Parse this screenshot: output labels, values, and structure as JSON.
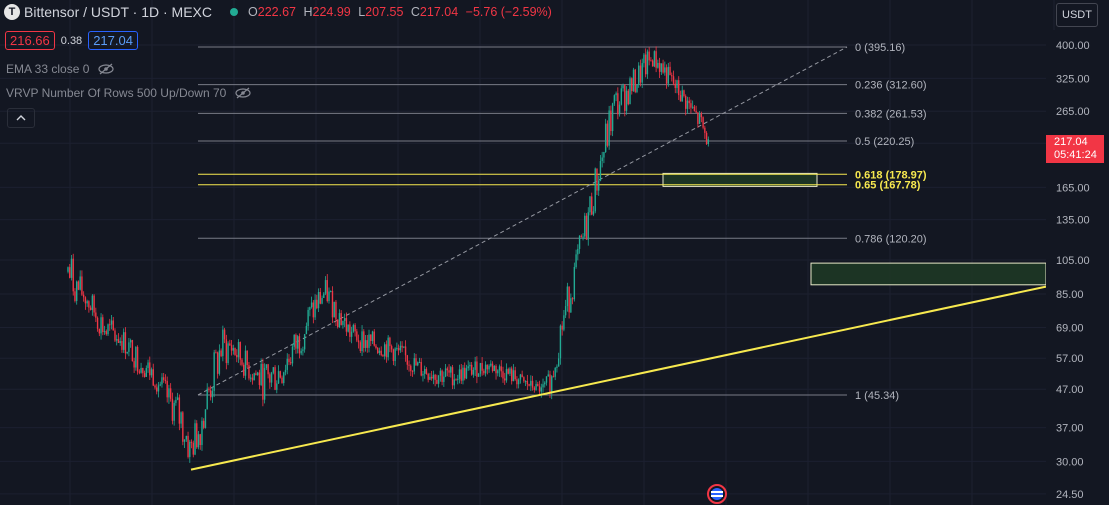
{
  "header": {
    "logo_glyph": "T",
    "symbol": "Bittensor / USDT · 1D · MEXC",
    "open_label": "O",
    "open": "222.67",
    "high_label": "H",
    "high": "224.99",
    "low_label": "L",
    "low": "207.55",
    "close_label": "C",
    "close": "217.04",
    "change": "−5.76 (−2.59%)"
  },
  "quote": {
    "bid": "216.66",
    "spread": "0.38",
    "ask": "217.04"
  },
  "indicators": [
    "EMA 33 close 0",
    "VRVP Number Of Rows 500 Up/Down 70"
  ],
  "currency": "USDT",
  "price_label": {
    "price": "217.04",
    "countdown": "05:41:24"
  },
  "colors": {
    "background": "#131722",
    "up": "#22ab94",
    "down": "#f23645",
    "fib_line": "#787b86",
    "fib_golden": "#f7e94f",
    "trendline": "#f7e94f",
    "zone_fill": "#1e3a25"
  },
  "chart_data": {
    "type": "candlestick",
    "scale": "log",
    "y_ticks": [
      400,
      325,
      265,
      217.04,
      165,
      135,
      105,
      85,
      69,
      57,
      47,
      37,
      30,
      24.5
    ],
    "y_tick_labels": [
      "400.00",
      "325.00",
      "265.00",
      "",
      "165.00",
      "135.00",
      "105.00",
      "85.00",
      "69.00",
      "57.00",
      "47.00",
      "37.00",
      "30.00",
      "24.50"
    ],
    "fib_levels": [
      {
        "ratio": "0",
        "price": 395.16,
        "label": "0 (395.16)"
      },
      {
        "ratio": "0.236",
        "price": 312.6,
        "label": "0.236 (312.60)"
      },
      {
        "ratio": "0.382",
        "price": 261.53,
        "label": "0.382 (261.53)"
      },
      {
        "ratio": "0.5",
        "price": 220.25,
        "label": "0.5 (220.25)"
      },
      {
        "ratio": "0.618",
        "price": 178.97,
        "label": "0.618 (178.97)"
      },
      {
        "ratio": "0.65",
        "price": 167.78,
        "label": "0.65 (167.78)"
      },
      {
        "ratio": "0.786",
        "price": 120.2,
        "label": "0.786 (120.20)"
      },
      {
        "ratio": "1",
        "price": 45.34,
        "label": "1 (45.34)"
      }
    ],
    "zones": [
      {
        "top": 180,
        "bottom": 166
      },
      {
        "top": 103,
        "bottom": 90
      }
    ],
    "trendline": {
      "start_price": 28.5,
      "end_price": 89
    },
    "fib_diagonal": {
      "start_price": 45.34,
      "end_price": 395.16
    },
    "price_path": [
      [
        0,
        80,
        120
      ],
      [
        4,
        80,
        100
      ],
      [
        10,
        76,
        92
      ],
      [
        16,
        68,
        82
      ],
      [
        22,
        60,
        75
      ],
      [
        30,
        60,
        70
      ],
      [
        40,
        52,
        62
      ],
      [
        50,
        47,
        55
      ],
      [
        58,
        40,
        48
      ],
      [
        66,
        32,
        45
      ],
      [
        70,
        28.5,
        36
      ],
      [
        76,
        33,
        42
      ],
      [
        82,
        42,
        55
      ],
      [
        88,
        52,
        70
      ],
      [
        94,
        55,
        68
      ],
      [
        102,
        50,
        60
      ],
      [
        112,
        44,
        55
      ],
      [
        122,
        46,
        60
      ],
      [
        132,
        56,
        70
      ],
      [
        142,
        70,
        88
      ],
      [
        148,
        80,
        93
      ],
      [
        154,
        70,
        85
      ],
      [
        162,
        62,
        72
      ],
      [
        172,
        58,
        68
      ],
      [
        182,
        57,
        66
      ],
      [
        192,
        54,
        62
      ],
      [
        202,
        50,
        57
      ],
      [
        212,
        48,
        56
      ],
      [
        222,
        48,
        54
      ],
      [
        232,
        50,
        56
      ],
      [
        242,
        52,
        57
      ],
      [
        252,
        49,
        55
      ],
      [
        262,
        47,
        51
      ],
      [
        272,
        45.5,
        48
      ],
      [
        278,
        46,
        54
      ],
      [
        284,
        62,
        80
      ],
      [
        290,
        82,
        100
      ],
      [
        296,
        105,
        135
      ],
      [
        302,
        140,
        178
      ],
      [
        308,
        180,
        240
      ],
      [
        314,
        240,
        310
      ],
      [
        320,
        265,
        320
      ],
      [
        326,
        290,
        350
      ],
      [
        332,
        320,
        385
      ],
      [
        336,
        345,
        395.16
      ],
      [
        340,
        330,
        380
      ],
      [
        346,
        300,
        345
      ],
      [
        352,
        275,
        315
      ],
      [
        358,
        255,
        285
      ],
      [
        364,
        225,
        262
      ],
      [
        368,
        207.55,
        225
      ]
    ]
  }
}
